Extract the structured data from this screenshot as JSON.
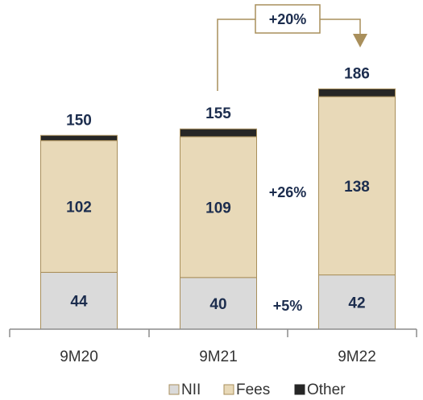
{
  "chart_data": {
    "type": "bar",
    "stacked": true,
    "categories": [
      "9M20",
      "9M21",
      "9M22"
    ],
    "series": [
      {
        "name": "NII",
        "values": [
          44,
          40,
          42
        ],
        "color": "#dadada"
      },
      {
        "name": "Fees",
        "values": [
          102,
          109,
          138
        ],
        "color": "#e8d9b8"
      },
      {
        "name": "Other",
        "values": [
          4,
          6,
          6
        ],
        "color": "#262626"
      }
    ],
    "totals": [
      150,
      155,
      186
    ],
    "annotations": {
      "fees_growth": "+26%",
      "nii_growth": "+5%",
      "total_growth": "+20%"
    },
    "legend_position": "bottom",
    "gridlines": false,
    "colors": {
      "border": "#a98f5b",
      "text": "#1c2d4e",
      "axis": "#8c8c8c"
    }
  }
}
